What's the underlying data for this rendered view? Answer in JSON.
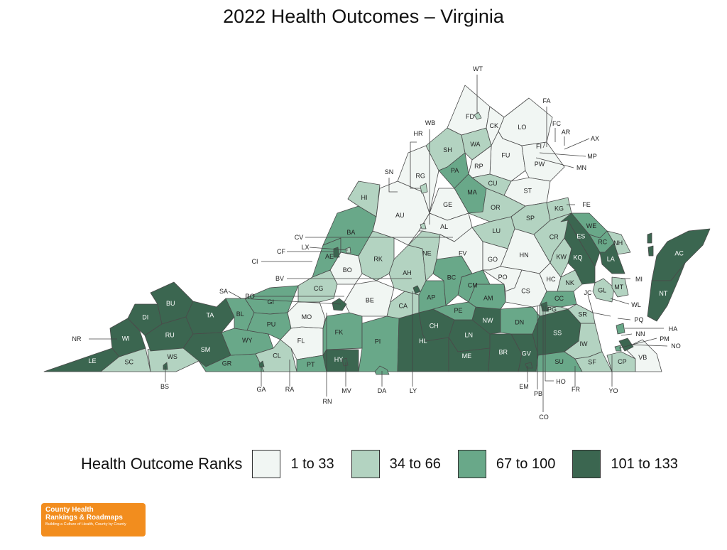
{
  "title": "2022 Health Outcomes – Virginia",
  "legend": {
    "title": "Health Outcome Ranks",
    "bins": [
      {
        "label": "1 to 33",
        "color": "#f1f6f3"
      },
      {
        "label": "34 to 66",
        "color": "#b3d3c1"
      },
      {
        "label": "67 to 100",
        "color": "#69a889"
      },
      {
        "label": "101 to 133",
        "color": "#3b6650"
      }
    ]
  },
  "logo": {
    "line1": "County Health",
    "line2": "Rankings & Roadmaps",
    "tagline": "Building a Culture of Health, County by County"
  },
  "counties": [
    {
      "id": "LE",
      "bin": 3
    },
    {
      "id": "SC",
      "bin": 1
    },
    {
      "id": "WS",
      "bin": 1
    },
    {
      "id": "NR",
      "bin": 3
    },
    {
      "id": "WI",
      "bin": 3
    },
    {
      "id": "DI",
      "bin": 3
    },
    {
      "id": "BU",
      "bin": 3
    },
    {
      "id": "RU",
      "bin": 3
    },
    {
      "id": "TA",
      "bin": 3
    },
    {
      "id": "SM",
      "bin": 3
    },
    {
      "id": "GR",
      "bin": 2
    },
    {
      "id": "BL",
      "bin": 2
    },
    {
      "id": "WY",
      "bin": 2
    },
    {
      "id": "GI",
      "bin": 2
    },
    {
      "id": "PU",
      "bin": 2
    },
    {
      "id": "CL",
      "bin": 1
    },
    {
      "id": "FL",
      "bin": 0
    },
    {
      "id": "MO",
      "bin": 0
    },
    {
      "id": "PT",
      "bin": 2
    },
    {
      "id": "FK",
      "bin": 2
    },
    {
      "id": "HY",
      "bin": 3
    },
    {
      "id": "PI",
      "bin": 2
    },
    {
      "id": "CH",
      "bin": 3
    },
    {
      "id": "HL",
      "bin": 3
    },
    {
      "id": "LN",
      "bin": 3
    },
    {
      "id": "ME",
      "bin": 3
    },
    {
      "id": "BR",
      "bin": 3
    },
    {
      "id": "GV",
      "bin": 3
    },
    {
      "id": "NW",
      "bin": 3
    },
    {
      "id": "DN",
      "bin": 2
    },
    {
      "id": "SS",
      "bin": 3
    },
    {
      "id": "SU",
      "bin": 2
    },
    {
      "id": "IW",
      "bin": 1
    },
    {
      "id": "SF",
      "bin": 1
    },
    {
      "id": "CP",
      "bin": 1
    },
    {
      "id": "VB",
      "bin": 0
    },
    {
      "id": "BE",
      "bin": 0
    },
    {
      "id": "CA",
      "bin": 1
    },
    {
      "id": "AP",
      "bin": 2
    },
    {
      "id": "PE",
      "bin": 2
    },
    {
      "id": "AM",
      "bin": 2
    },
    {
      "id": "CM",
      "bin": 2
    },
    {
      "id": "BC",
      "bin": 2
    },
    {
      "id": "AH",
      "bin": 1
    },
    {
      "id": "NE",
      "bin": 1
    },
    {
      "id": "RK",
      "bin": 1
    },
    {
      "id": "BO",
      "bin": 0
    },
    {
      "id": "CG",
      "bin": 1
    },
    {
      "id": "AE",
      "bin": 2
    },
    {
      "id": "BA",
      "bin": 2
    },
    {
      "id": "HI",
      "bin": 1
    },
    {
      "id": "AU",
      "bin": 0
    },
    {
      "id": "RG",
      "bin": 0
    },
    {
      "id": "SH",
      "bin": 1
    },
    {
      "id": "PA",
      "bin": 2
    },
    {
      "id": "WA",
      "bin": 1
    },
    {
      "id": "FD",
      "bin": 0
    },
    {
      "id": "CK",
      "bin": 0
    },
    {
      "id": "LO",
      "bin": 0
    },
    {
      "id": "FU",
      "bin": 0
    },
    {
      "id": "RP",
      "bin": 0
    },
    {
      "id": "MA",
      "bin": 2
    },
    {
      "id": "CU",
      "bin": 1
    },
    {
      "id": "PW",
      "bin": 0
    },
    {
      "id": "ST",
      "bin": 0
    },
    {
      "id": "OR",
      "bin": 1
    },
    {
      "id": "SP",
      "bin": 1
    },
    {
      "id": "KG",
      "bin": 1
    },
    {
      "id": "GE",
      "bin": 0
    },
    {
      "id": "AL",
      "bin": 0
    },
    {
      "id": "FV",
      "bin": 0
    },
    {
      "id": "LU",
      "bin": 1
    },
    {
      "id": "GO",
      "bin": 0
    },
    {
      "id": "HN",
      "bin": 0
    },
    {
      "id": "CR",
      "bin": 1
    },
    {
      "id": "WE",
      "bin": 2
    },
    {
      "id": "ES",
      "bin": 3
    },
    {
      "id": "RC",
      "bin": 2
    },
    {
      "id": "NH",
      "bin": 1
    },
    {
      "id": "KW",
      "bin": 1
    },
    {
      "id": "KQ",
      "bin": 3
    },
    {
      "id": "LA",
      "bin": 3
    },
    {
      "id": "PO",
      "bin": 0
    },
    {
      "id": "CS",
      "bin": 0
    },
    {
      "id": "HC",
      "bin": 0
    },
    {
      "id": "NK",
      "bin": 1
    },
    {
      "id": "GL",
      "bin": 1
    },
    {
      "id": "MT",
      "bin": 1
    },
    {
      "id": "CC",
      "bin": 2
    },
    {
      "id": "PG",
      "bin": 1
    },
    {
      "id": "SR",
      "bin": 1
    },
    {
      "id": "AC",
      "bin": 3
    },
    {
      "id": "NT",
      "bin": 3
    }
  ],
  "external_labels": [
    "WT",
    "FA",
    "FC",
    "AR",
    "AX",
    "FI",
    "MP",
    "MN",
    "HR",
    "WB",
    "SN",
    "FE",
    "CV",
    "LX",
    "CF",
    "CI",
    "BV",
    "SA",
    "RO",
    "MI",
    "JC",
    "WL",
    "PQ",
    "HA",
    "NN",
    "PM",
    "NO",
    "NR",
    "BS",
    "GA",
    "RA",
    "RN",
    "MV",
    "DA",
    "LY",
    "EM",
    "PB",
    "HO",
    "FR",
    "YO",
    "CO"
  ]
}
